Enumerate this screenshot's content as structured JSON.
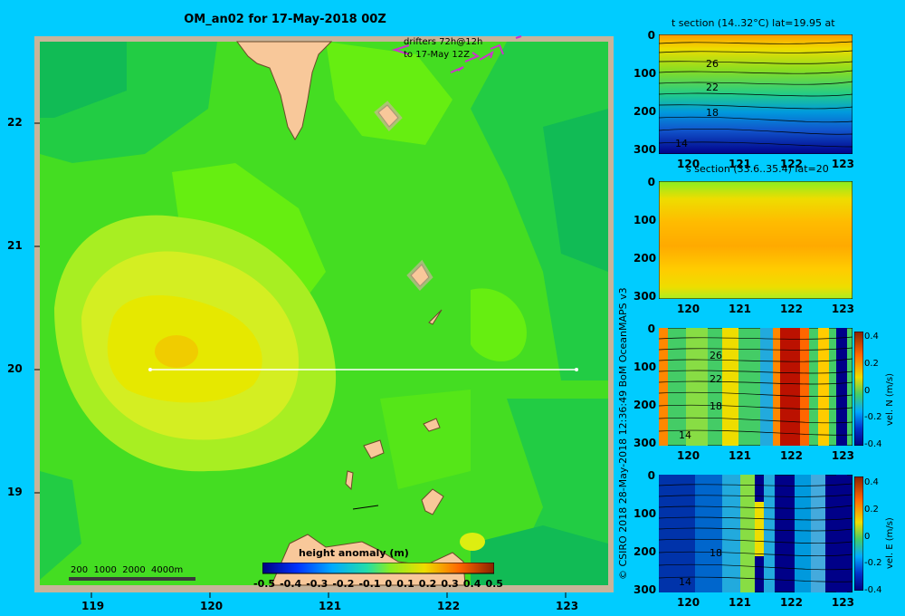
{
  "title": "OM_an02 for 17-May-2018 00Z",
  "map": {
    "lat_ticks": [
      "22",
      "21",
      "20",
      "19"
    ],
    "lon_ticks": [
      "119",
      "120",
      "121",
      "122",
      "123"
    ],
    "drifter_note_line1": "drifters 72h@12h",
    "drifter_note_line2": "to 17-May 12Z",
    "scale_bar_label": "200  1000  2000  4000m",
    "section_line_lat": 20,
    "colorbar_title": "height anomaly  (m)",
    "colorbar_ticks": [
      "-0.5",
      "-0.4",
      "-0.3",
      "-0.2",
      "-0.1",
      "0",
      "0.1",
      "0.2",
      "0.3",
      "0.4",
      "0.5"
    ],
    "colors": {
      "land": "#f8c89a",
      "ocean_base": "#44dd22",
      "background": "#00ccff"
    }
  },
  "panels": {
    "t_section": {
      "title": "t section (14..32°C) lat=19.95 at",
      "depth_ticks": [
        "0",
        "100",
        "200",
        "300"
      ],
      "lon_ticks": [
        "120",
        "121",
        "122",
        "123"
      ],
      "contour_labels": [
        "26",
        "22",
        "18",
        "14"
      ]
    },
    "s_section": {
      "title": "s section (33.6..35.4) lat=20",
      "depth_ticks": [
        "0",
        "100",
        "200",
        "300"
      ],
      "lon_ticks": [
        "120",
        "121",
        "122",
        "123"
      ]
    },
    "vn_section": {
      "depth_ticks": [
        "0",
        "100",
        "200",
        "300"
      ],
      "lon_ticks": [
        "120",
        "121",
        "122",
        "123"
      ],
      "contour_labels": [
        "26",
        "22",
        "18",
        "14"
      ],
      "colorbar_ticks": [
        "0.4",
        "0.2",
        "0",
        "-0.2",
        "-0.4"
      ],
      "colorbar_label": "vel. N (m/s)"
    },
    "ve_section": {
      "depth_ticks": [
        "0",
        "100",
        "200",
        "300"
      ],
      "lon_ticks": [
        "120",
        "121",
        "122",
        "123"
      ],
      "contour_labels": [
        "18",
        "14"
      ],
      "colorbar_ticks": [
        "0.4",
        "0.2",
        "0",
        "-0.2",
        "-0.4"
      ],
      "colorbar_label": "vel. E (m/s)"
    }
  },
  "credit": "© CSIRO 2018   28-May-2018 12:36:49 BoM OceanMAPS v3"
}
